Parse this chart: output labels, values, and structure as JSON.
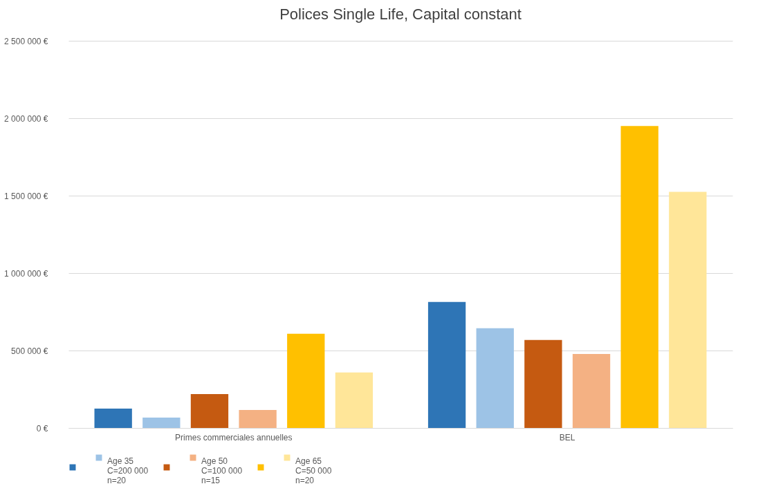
{
  "chart_data": {
    "type": "bar",
    "title": "Polices Single Life, Capital constant",
    "categories": [
      "Primes commerciales annuelles",
      "BEL"
    ],
    "series": [
      {
        "name": null,
        "color": "#2e75b6",
        "values": [
          125000,
          814000
        ]
      },
      {
        "name": "Age 35\nC=200 000\nn=20",
        "color": "#9dc3e6",
        "values": [
          67000,
          644000
        ]
      },
      {
        "name": null,
        "color": "#c55a11",
        "values": [
          219000,
          568000
        ]
      },
      {
        "name": "Age 50\nC=100 000\nn=15",
        "color": "#f4b183",
        "values": [
          116000,
          478000
        ]
      },
      {
        "name": null,
        "color": "#ffc000",
        "values": [
          608000,
          1950000
        ]
      },
      {
        "name": "Age 65\nC=50 000\nn=20",
        "color": "#ffe699",
        "values": [
          358000,
          1525000
        ]
      }
    ],
    "ylim": [
      0,
      2500000
    ],
    "yticks": [
      {
        "value": 0,
        "label": "0 €"
      },
      {
        "value": 500000,
        "label": "500 000 €"
      },
      {
        "value": 1000000,
        "label": "1 000 000 €"
      },
      {
        "value": 1500000,
        "label": "1 500 000 €"
      },
      {
        "value": 2000000,
        "label": "2 000 000 €"
      },
      {
        "value": 2500000,
        "label": "2 500 000 €"
      }
    ],
    "grid": "y",
    "legend": "bottom"
  }
}
